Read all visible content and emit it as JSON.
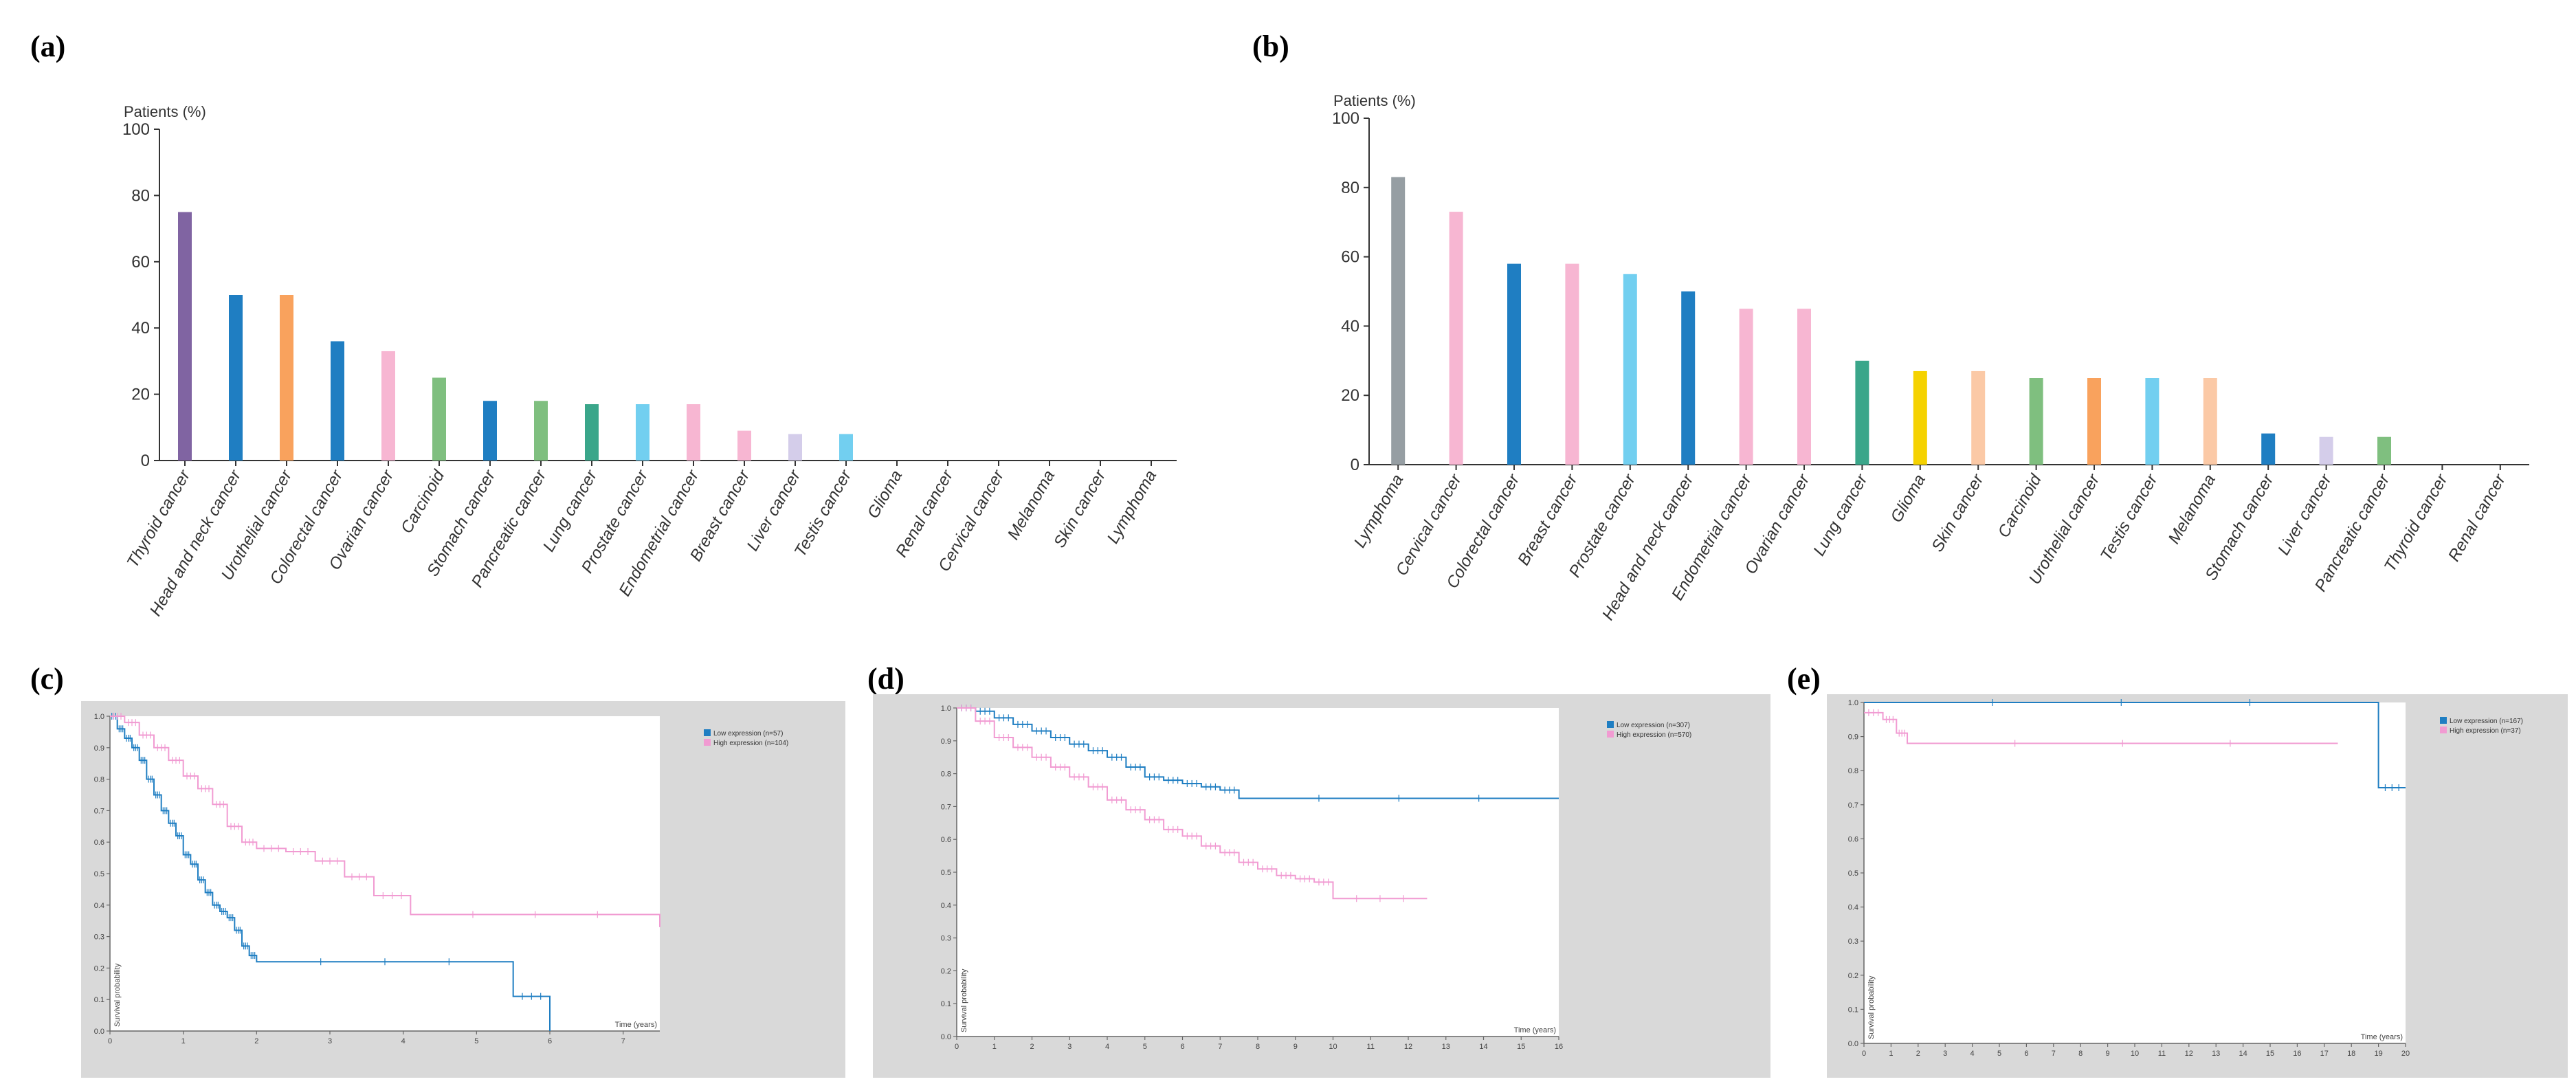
{
  "panels": {
    "a": "(a)",
    "b": "(b)",
    "c": "(c)",
    "d": "(d)",
    "e": "(e)"
  },
  "chart_data": [
    {
      "id": "a",
      "type": "bar",
      "ylabel": "Patients (%)",
      "ylim": [
        0,
        100
      ],
      "yticks": [
        0,
        20,
        40,
        60,
        80,
        100
      ],
      "grid": false,
      "categories": [
        "Thyroid cancer",
        "Head and neck cancer",
        "Urothelial cancer",
        "Colorectal cancer",
        "Ovarian cancer",
        "Carcinoid",
        "Stomach cancer",
        "Pancreatic cancer",
        "Lung cancer",
        "Prostate cancer",
        "Endometrial cancer",
        "Breast cancer",
        "Liver cancer",
        "Testis cancer",
        "Glioma",
        "Renal cancer",
        "Cervical cancer",
        "Melanoma",
        "Skin cancer",
        "Lymphoma"
      ],
      "values": [
        75,
        50,
        50,
        36,
        33,
        25,
        18,
        18,
        17,
        17,
        17,
        9,
        8,
        8,
        0,
        0,
        0,
        0,
        0,
        0
      ],
      "colors": [
        "#8064a2",
        "#1f7ec2",
        "#f9a25d",
        "#1f7ec2",
        "#f7b6d2",
        "#7fbf7f",
        "#1f7ec2",
        "#7fbf7f",
        "#3aa68a",
        "#72cff0",
        "#f7b6d2",
        "#f7b6d2",
        "#d4cdea",
        "#72cff0",
        "#cccccc",
        "#cccccc",
        "#cccccc",
        "#cccccc",
        "#cccccc",
        "#cccccc"
      ]
    },
    {
      "id": "b",
      "type": "bar",
      "ylabel": "Patients (%)",
      "ylim": [
        0,
        100
      ],
      "yticks": [
        0,
        20,
        40,
        60,
        80,
        100
      ],
      "grid": false,
      "categories": [
        "Lymphoma",
        "Cervical cancer",
        "Colorectal cancer",
        "Breast cancer",
        "Prostate cancer",
        "Head and neck cancer",
        "Endometrial cancer",
        "Ovarian cancer",
        "Lung cancer",
        "Glioma",
        "Skin cancer",
        "Carcinoid",
        "Urothelial cancer",
        "Testis cancer",
        "Melanoma",
        "Stomach cancer",
        "Liver cancer",
        "Pancreatic cancer",
        "Thyroid cancer",
        "Renal cancer"
      ],
      "values": [
        83,
        73,
        58,
        58,
        55,
        50,
        45,
        45,
        30,
        27,
        27,
        25,
        25,
        25,
        25,
        9,
        8,
        8,
        0,
        0
      ],
      "colors": [
        "#969ea3",
        "#f7b6d2",
        "#1f7ec2",
        "#f7b6d2",
        "#72cff0",
        "#1f7ec2",
        "#f7b6d2",
        "#f7b6d2",
        "#3aa68a",
        "#f5d200",
        "#fbc9a6",
        "#7fbf7f",
        "#f9a25d",
        "#72cff0",
        "#fbc9a6",
        "#1f7ec2",
        "#d4cdea",
        "#7fbf7f",
        "#cccccc",
        "#cccccc"
      ]
    },
    {
      "id": "c",
      "type": "line",
      "xlabel": "Time (years)",
      "ylabel": "Survival probability",
      "xlim": [
        0,
        7.5
      ],
      "ylim": [
        0,
        1
      ],
      "xticks": [
        0,
        1,
        2,
        3,
        4,
        5,
        6,
        7
      ],
      "yticks": [
        0,
        0.1,
        0.2,
        0.3,
        0.4,
        0.5,
        0.6,
        0.7,
        0.8,
        0.9,
        1.0
      ],
      "legend_position": "top-right",
      "series": [
        {
          "name": "Low expression (n=57)",
          "color": "#1f7ec2",
          "x": [
            0,
            0.1,
            0.2,
            0.3,
            0.4,
            0.5,
            0.6,
            0.7,
            0.8,
            0.9,
            1.0,
            1.1,
            1.2,
            1.3,
            1.4,
            1.5,
            1.6,
            1.7,
            1.8,
            1.9,
            2.0,
            5.5,
            6.0
          ],
          "y": [
            1.0,
            0.96,
            0.93,
            0.9,
            0.86,
            0.8,
            0.75,
            0.7,
            0.66,
            0.62,
            0.56,
            0.53,
            0.48,
            0.44,
            0.4,
            0.38,
            0.36,
            0.32,
            0.27,
            0.24,
            0.22,
            0.11,
            0.0
          ]
        },
        {
          "name": "High expression (n=104)",
          "color": "#f19bd2",
          "x": [
            0,
            0.2,
            0.4,
            0.6,
            0.8,
            1.0,
            1.2,
            1.4,
            1.6,
            1.8,
            2.0,
            2.4,
            2.8,
            3.2,
            3.6,
            4.1,
            7.5
          ],
          "y": [
            1.0,
            0.98,
            0.94,
            0.9,
            0.86,
            0.81,
            0.77,
            0.72,
            0.65,
            0.6,
            0.58,
            0.57,
            0.54,
            0.49,
            0.43,
            0.37,
            0.33
          ]
        }
      ]
    },
    {
      "id": "d",
      "type": "line",
      "xlabel": "Time (years)",
      "ylabel": "Survival probability",
      "xlim": [
        0,
        16
      ],
      "ylim": [
        0,
        1
      ],
      "xticks": [
        0,
        1,
        2,
        3,
        4,
        5,
        6,
        7,
        8,
        9,
        10,
        11,
        12,
        13,
        14,
        15,
        16
      ],
      "yticks": [
        0,
        0.1,
        0.2,
        0.3,
        0.4,
        0.5,
        0.6,
        0.7,
        0.8,
        0.9,
        1.0
      ],
      "legend_position": "top-right",
      "series": [
        {
          "name": "Low expression (n=307)",
          "color": "#1f7ec2",
          "x": [
            0,
            0.5,
            1,
            1.5,
            2,
            2.5,
            3,
            3.5,
            4,
            4.5,
            5,
            5.5,
            6,
            6.5,
            7,
            7.5,
            16
          ],
          "y": [
            1.0,
            0.99,
            0.97,
            0.95,
            0.93,
            0.91,
            0.89,
            0.87,
            0.85,
            0.82,
            0.79,
            0.78,
            0.77,
            0.76,
            0.75,
            0.725,
            0.725
          ]
        },
        {
          "name": "High expression (n=570)",
          "color": "#f19bd2",
          "x": [
            0,
            0.5,
            1,
            1.5,
            2,
            2.5,
            3,
            3.5,
            4,
            4.5,
            5,
            5.5,
            6,
            6.5,
            7,
            7.5,
            8,
            8.5,
            9,
            9.5,
            10,
            12.5
          ],
          "y": [
            1.0,
            0.96,
            0.91,
            0.88,
            0.85,
            0.82,
            0.79,
            0.76,
            0.72,
            0.69,
            0.66,
            0.63,
            0.61,
            0.58,
            0.56,
            0.53,
            0.51,
            0.49,
            0.48,
            0.47,
            0.42,
            0.42
          ]
        }
      ]
    },
    {
      "id": "e",
      "type": "line",
      "xlabel": "Time (years)",
      "ylabel": "Survival probability",
      "xlim": [
        0,
        20
      ],
      "ylim": [
        0,
        1
      ],
      "xticks": [
        0,
        1,
        2,
        3,
        4,
        5,
        6,
        7,
        8,
        9,
        10,
        11,
        12,
        13,
        14,
        15,
        16,
        17,
        18,
        19,
        20
      ],
      "yticks": [
        0,
        0.1,
        0.2,
        0.3,
        0.4,
        0.5,
        0.6,
        0.7,
        0.8,
        0.9,
        1.0
      ],
      "legend_position": "top-right",
      "series": [
        {
          "name": "Low expression (n=167)",
          "color": "#1f7ec2",
          "x": [
            0,
            19.0,
            20.0
          ],
          "y": [
            1.0,
            0.75,
            0.75
          ]
        },
        {
          "name": "High expression (n=37)",
          "color": "#f19bd2",
          "x": [
            0,
            0.7,
            1.2,
            1.6,
            17.5
          ],
          "y": [
            0.97,
            0.95,
            0.91,
            0.88,
            0.88
          ]
        }
      ]
    }
  ]
}
